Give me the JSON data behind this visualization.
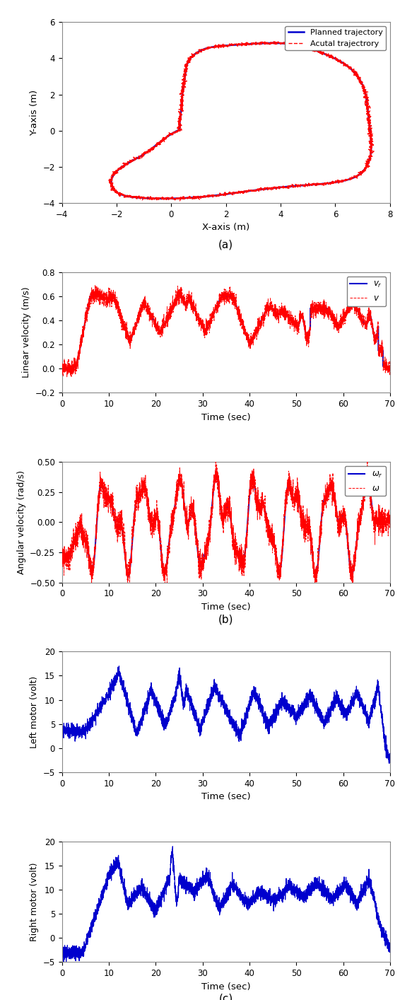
{
  "fig_width": 5.66,
  "fig_height": 14.14,
  "trajectory": {
    "xlim": [
      -4,
      8
    ],
    "ylim": [
      -4,
      6
    ],
    "xlabel": "X-axis (m)",
    "ylabel": "Y-axis (m)",
    "xticks": [
      -4,
      -2,
      0,
      2,
      4,
      6,
      8
    ],
    "yticks": [
      -4,
      -2,
      0,
      2,
      4,
      6
    ]
  },
  "velocity": {
    "xlim": [
      0,
      70
    ],
    "ylim": [
      -0.2,
      0.8
    ],
    "xlabel": "Time (sec)",
    "ylabel": "Linear velocity (m/s)",
    "xticks": [
      0,
      10,
      20,
      30,
      40,
      50,
      60,
      70
    ],
    "yticks": [
      -0.2,
      0,
      0.2,
      0.4,
      0.6,
      0.8
    ]
  },
  "angular": {
    "xlim": [
      0,
      70
    ],
    "ylim": [
      -0.5,
      0.5
    ],
    "xlabel": "Time (sec)",
    "ylabel": "Angular velocity (rad/s)",
    "xticks": [
      0,
      10,
      20,
      30,
      40,
      50,
      60,
      70
    ],
    "yticks": [
      -0.5,
      -0.25,
      0,
      0.25,
      0.5
    ]
  },
  "left_motor": {
    "xlim": [
      0,
      70
    ],
    "ylim": [
      -5,
      20
    ],
    "xlabel": "Time (sec)",
    "ylabel": "Left motor (volt)",
    "xticks": [
      0,
      10,
      20,
      30,
      40,
      50,
      60,
      70
    ],
    "yticks": [
      -5,
      0,
      5,
      10,
      15,
      20
    ]
  },
  "right_motor": {
    "xlim": [
      0,
      70
    ],
    "ylim": [
      -5,
      20
    ],
    "xlabel": "Time (sec)",
    "ylabel": "Right motor (volt)",
    "xticks": [
      0,
      10,
      20,
      30,
      40,
      50,
      60,
      70
    ],
    "yticks": [
      -5,
      0,
      5,
      10,
      15,
      20
    ]
  },
  "blue": "#0000CD",
  "red": "#FF0000",
  "legend_traj": [
    "Planned trajectory",
    "Acutal trajectrory"
  ],
  "legend_vel": [
    "$v_r$",
    "$v$"
  ],
  "legend_ang": [
    "$\\omega_r$",
    "$\\omega$"
  ]
}
